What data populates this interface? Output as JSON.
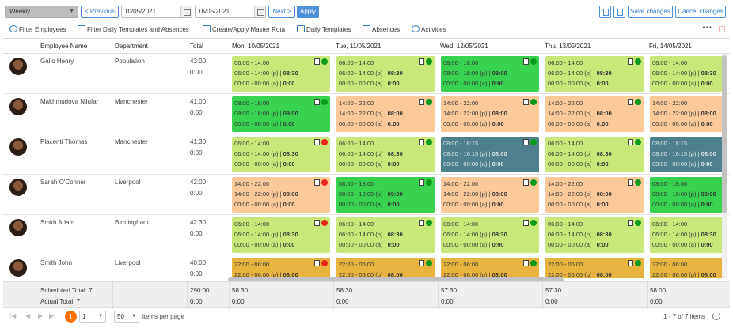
{
  "toolbar": {
    "view_select": "Weekly",
    "prev_label": "< Previous",
    "date_from": "10/05/2021",
    "date_to": "16/05/2021",
    "next_label": "Next >",
    "apply_label": "Apply",
    "save_label": "Save changes",
    "cancel_label": "Cancel changes"
  },
  "actions": {
    "filter_employees": "Filter Employees",
    "filter_templates": "Filter Daily Templates and Absences",
    "master_rota": "Create/Apply Master Rota",
    "daily_templates": "Daily Templates",
    "absences": "Absences",
    "activities": "Activities"
  },
  "grid": {
    "columns": {
      "name": "Employee Name",
      "department": "Department",
      "total": "Total",
      "days": [
        "Mon, 10/05/2021",
        "Tue, 11/05/2021",
        "Wed, 12/05/2021",
        "Thu, 13/05/2021",
        "Fri, 14/05/2021"
      ]
    },
    "rows": [
      {
        "name": "Gallo Henry",
        "department": "Population",
        "total": "43:00",
        "total2": "0:00",
        "cells": [
          {
            "color": "lgreen",
            "dot": "#0a9a1a",
            "l1": "06:00 - 14:00",
            "l2": "06:00 - 14:00 (p) | ",
            "l2b": "08:30",
            "l3": "00:00 - 00:00 (a) | ",
            "l3b": "0:00"
          },
          {
            "color": "lgreen",
            "dot": "#0a9a1a",
            "l1": "06:00 - 14:00",
            "l2": "06:00 - 14:00 (p) | ",
            "l2b": "08:30",
            "l3": "00:00 - 00:00 (a) | ",
            "l3b": "0:00"
          },
          {
            "color": "green",
            "dot": "#0a9a1a",
            "l1": "08:00 - 18:00",
            "l2": "08:00 - 18:00 (p) | ",
            "l2b": "09:00",
            "l3": "00:00 - 00:00 (a) | ",
            "l3b": "0:00"
          },
          {
            "color": "lgreen",
            "dot": "#0a9a1a",
            "l1": "06:00 - 14:00",
            "l2": "06:00 - 14:00 (p) | ",
            "l2b": "08:30",
            "l3": "00:00 - 00:00 (a) | ",
            "l3b": "0:00"
          },
          {
            "color": "lgreen",
            "dot": "",
            "l1": "06:00 - 14:00",
            "l2": "06:00 - 14:00 (p) | ",
            "l2b": "08:30",
            "l3": "00:00 - 00:00 (a) | ",
            "l3b": "0:00"
          }
        ]
      },
      {
        "name": "Makhmudova Nilufar",
        "department": "Manchester",
        "total": "41:00",
        "total2": "0:00",
        "cells": [
          {
            "color": "green",
            "dot": "#0a9a1a",
            "l1": "08:00 - 18:00",
            "l2": "08:00 - 18:00 (p) | ",
            "l2b": "09:00",
            "l3": "00:00 - 00:00 (a) | ",
            "l3b": "0:00"
          },
          {
            "color": "peach",
            "dot": "#0a9a1a",
            "l1": "14:00 - 22:00",
            "l2": "14:00 - 22:00 (p) | ",
            "l2b": "08:00",
            "l3": "00:00 - 00:00 (a) | ",
            "l3b": "0:00"
          },
          {
            "color": "peach",
            "dot": "#0a9a1a",
            "l1": "14:00 - 22:00",
            "l2": "14:00 - 22:00 (p) | ",
            "l2b": "08:00",
            "l3": "00:00 - 00:00 (a) | ",
            "l3b": "0:00"
          },
          {
            "color": "peach",
            "dot": "#0a9a1a",
            "l1": "14:00 - 22:00",
            "l2": "14:00 - 22:00 (p) | ",
            "l2b": "08:00",
            "l3": "00:00 - 00:00 (a) | ",
            "l3b": "0:00"
          },
          {
            "color": "peach",
            "dot": "",
            "l1": "14:00 - 22:00",
            "l2": "14:00 - 22:00 (p) | ",
            "l2b": "08:00",
            "l3": "00:00 - 00:00 (a) | ",
            "l3b": "0:00"
          }
        ]
      },
      {
        "name": "Placenti Thomas",
        "department": "Manchester",
        "total": "41:30",
        "total2": "0:00",
        "cells": [
          {
            "color": "lgreen",
            "dot": "#e8261b",
            "l1": "06:00 - 14:00",
            "l2": "06:00 - 14:00 (p) | ",
            "l2b": "08:30",
            "l3": "00:00 - 00:00 (a) | ",
            "l3b": "0:00"
          },
          {
            "color": "lgreen",
            "dot": "#0a9a1a",
            "l1": "06:00 - 14:00",
            "l2": "06:00 - 14:00 (p) | ",
            "l2b": "08:30",
            "l3": "00:00 - 00:00 (a) | ",
            "l3b": "0:00"
          },
          {
            "color": "teal",
            "dot": "#0a9a1a",
            "l1": "08:00 - 16:15",
            "l2": "08:00 - 16:15 (p) | ",
            "l2b": "08:00",
            "l3": "00:00 - 00:00 (a) | ",
            "l3b": "0:00"
          },
          {
            "color": "lgreen",
            "dot": "#0a9a1a",
            "l1": "06:00 - 14:00",
            "l2": "06:00 - 14:00 (p) | ",
            "l2b": "08:30",
            "l3": "00:00 - 00:00 (a) | ",
            "l3b": "0:00"
          },
          {
            "color": "teal",
            "dot": "",
            "l1": "08:00 - 16:15",
            "l2": "08:00 - 16:15 (p) | ",
            "l2b": "08:00",
            "l3": "00:00 - 00:00 (a) | ",
            "l3b": "0:00"
          }
        ]
      },
      {
        "name": "Sarah O'Conner",
        "department": "Liverpool",
        "total": "42:00",
        "total2": "0:00",
        "cells": [
          {
            "color": "peach",
            "dot": "#e8261b",
            "l1": "14:00 - 22:00",
            "l2": "14:00 - 22:00 (p) | ",
            "l2b": "08:00",
            "l3": "00:00 - 00:00 (a) | ",
            "l3b": "0:00"
          },
          {
            "color": "green",
            "dot": "#0a9a1a",
            "l1": "08:00 - 18:00",
            "l2": "08:00 - 18:00 (p) | ",
            "l2b": "09:00",
            "l3": "00:00 - 00:00 (a) | ",
            "l3b": "0:00"
          },
          {
            "color": "peach",
            "dot": "#0a9a1a",
            "l1": "14:00 - 22:00",
            "l2": "14:00 - 22:00 (p) | ",
            "l2b": "08:00",
            "l3": "00:00 - 00:00 (a) | ",
            "l3b": "0:00"
          },
          {
            "color": "peach",
            "dot": "#0a9a1a",
            "l1": "14:00 - 22:00",
            "l2": "14:00 - 22:00 (p) | ",
            "l2b": "08:00",
            "l3": "00:00 - 00:00 (a) | ",
            "l3b": "0:00"
          },
          {
            "color": "green",
            "dot": "",
            "l1": "08:00 - 18:00",
            "l2": "08:00 - 18:00 (p) | ",
            "l2b": "09:00",
            "l3": "00:00 - 00:00 (a) | ",
            "l3b": "0:00"
          }
        ]
      },
      {
        "name": "Smith Adam",
        "department": "Birmingham",
        "total": "42:30",
        "total2": "0:00",
        "cells": [
          {
            "color": "lgreen",
            "dot": "#e8261b",
            "l1": "06:00 - 14:00",
            "l2": "06:00 - 14:00 (p) | ",
            "l2b": "08:30",
            "l3": "00:00 - 00:00 (a) | ",
            "l3b": "0:00"
          },
          {
            "color": "lgreen",
            "dot": "#0a9a1a",
            "l1": "06:00 - 14:00",
            "l2": "06:00 - 14:00 (p) | ",
            "l2b": "08:30",
            "l3": "00:00 - 00:00 (a) | ",
            "l3b": "0:00"
          },
          {
            "color": "lgreen",
            "dot": "#0a9a1a",
            "l1": "06:00 - 14:00",
            "l2": "06:00 - 14:00 (p) | ",
            "l2b": "08:30",
            "l3": "00:00 - 00:00 (a) | ",
            "l3b": "0:00"
          },
          {
            "color": "lgreen",
            "dot": "#0a9a1a",
            "l1": "06:00 - 14:00",
            "l2": "06:00 - 14:00 (p) | ",
            "l2b": "08:30",
            "l3": "00:00 - 00:00 (a) | ",
            "l3b": "0:00"
          },
          {
            "color": "lgreen",
            "dot": "",
            "l1": "06:00 - 14:00",
            "l2": "06:00 - 14:00 (p) | ",
            "l2b": "08:30",
            "l3": "00:00 - 00:00 (a) | ",
            "l3b": "0:00"
          }
        ]
      },
      {
        "name": "Smith John",
        "department": "Liverpool",
        "total": "40:00",
        "total2": "0:00",
        "cells": [
          {
            "color": "gold",
            "dot": "#e8261b",
            "l1": "22:00 - 06:00",
            "l2": "22:00 - 06:00 (p) | ",
            "l2b": "08:00",
            "l3": "",
            "l3b": ""
          },
          {
            "color": "gold",
            "dot": "#0a9a1a",
            "l1": "22:00 - 06:00",
            "l2": "22:00 - 06:00 (p) | ",
            "l2b": "08:00",
            "l3": "",
            "l3b": ""
          },
          {
            "color": "gold",
            "dot": "#0a9a1a",
            "l1": "22:00 - 06:00",
            "l2": "22:00 - 06:00 (p) | ",
            "l2b": "08:00",
            "l3": "",
            "l3b": ""
          },
          {
            "color": "gold",
            "dot": "#0a9a1a",
            "l1": "22:00 - 06:00",
            "l2": "22:00 - 06:00 (p) | ",
            "l2b": "08:00",
            "l3": "",
            "l3b": ""
          },
          {
            "color": "gold",
            "dot": "",
            "l1": "22:00 - 06:00",
            "l2": "22:00 - 06:00 (p) | ",
            "l2b": "08:00",
            "l3": "",
            "l3b": ""
          }
        ]
      }
    ]
  },
  "totals": {
    "scheduled_label": "Scheduled Total: 7",
    "actual_label": "Actual Total: 7",
    "total": "290:00",
    "total_actual": "0:00",
    "days": [
      {
        "scheduled": "58:30",
        "actual": "0:00"
      },
      {
        "scheduled": "58:30",
        "actual": "0:00"
      },
      {
        "scheduled": "57:30",
        "actual": "0:00"
      },
      {
        "scheduled": "57:30",
        "actual": "0:00"
      },
      {
        "scheduled": "58:00",
        "actual": "0:00"
      }
    ]
  },
  "pager": {
    "current_page": "1",
    "page_select": "1",
    "page_size": "50",
    "items_per_page_label": "items per page",
    "range_label": "1 - 7 of 7 items"
  },
  "colors": {
    "lgreen": "#c8e97a",
    "green": "#38d24f",
    "peach": "#fcc999",
    "teal": "#4d7f8c",
    "gold": "#e8b43f",
    "accent": "#4a90d9",
    "page_active": "#ff6f00"
  }
}
